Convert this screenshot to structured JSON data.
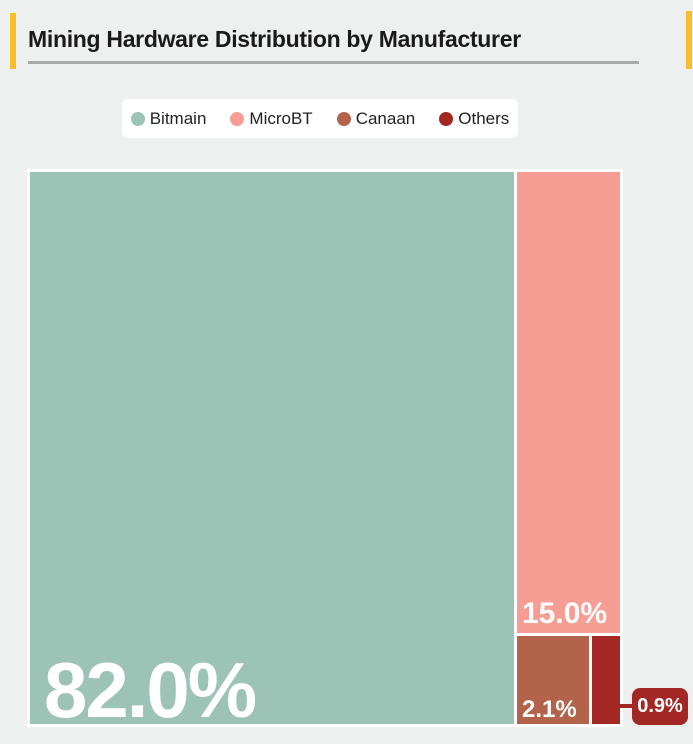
{
  "page": {
    "background": "#eef0ef",
    "accent_color": "#fbbd2c"
  },
  "header": {
    "title": "Mining Hardware Distribution by Manufacturer"
  },
  "chart_data": {
    "type": "treemap",
    "title": "Mining Hardware Distribution by Manufacturer",
    "categories": [
      "Bitmain",
      "MicroBT",
      "Canaan",
      "Others"
    ],
    "values": [
      82.0,
      15.0,
      2.1,
      0.9
    ],
    "unit": "%",
    "labels": [
      "82.0%",
      "15.0%",
      "2.1%",
      "0.9%"
    ],
    "colors": [
      "#9cc3b5",
      "#f69d94",
      "#b26349",
      "#a32723"
    ],
    "legend_position": "top",
    "label_color": "#ffffff",
    "notes": "Others value shown in external callout connected to smallest tile"
  },
  "callout": {
    "label": "0.9%",
    "color": "#a32723"
  }
}
